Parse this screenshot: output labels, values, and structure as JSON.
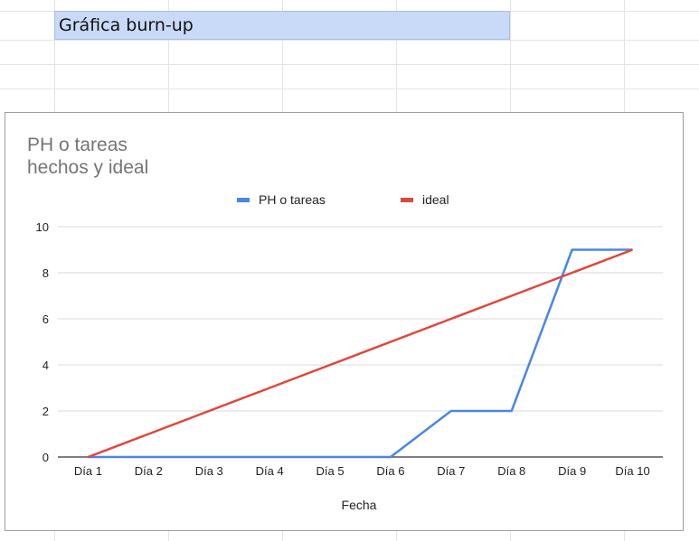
{
  "sheet": {
    "header_cell_text": "Gráfica burn-up"
  },
  "chart_data": {
    "type": "line",
    "title_lines": [
      "PH o tareas",
      "hechos y ideal"
    ],
    "xlabel": "Fecha",
    "ylabel": "",
    "categories": [
      "Día 1",
      "Día 2",
      "Día 3",
      "Día 4",
      "Día 5",
      "Día 6",
      "Día 7",
      "Día 8",
      "Día 9",
      "Día 10"
    ],
    "ylim": [
      0,
      10
    ],
    "yticks": [
      0,
      2,
      4,
      6,
      8,
      10
    ],
    "grid": true,
    "legend_position": "top",
    "series": [
      {
        "name": "PH o tareas",
        "color": "#4a86e8",
        "values": [
          0,
          0,
          0,
          0,
          0,
          0,
          2,
          2,
          9,
          9
        ]
      },
      {
        "name": "ideal",
        "color": "#e0473b",
        "values": [
          0,
          1,
          2,
          3,
          4,
          5,
          6,
          7,
          8,
          9
        ]
      }
    ]
  }
}
